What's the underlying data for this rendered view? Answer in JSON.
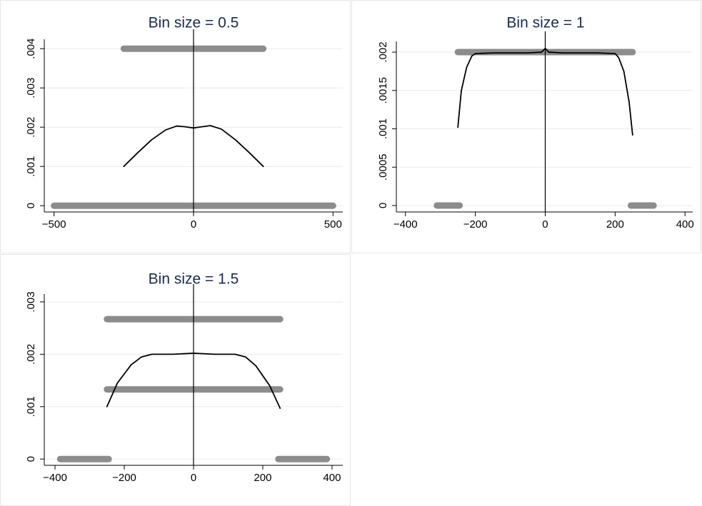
{
  "chart_data": [
    {
      "type": "line",
      "title": "Bin size = 0.5",
      "xlim": [
        -535,
        535
      ],
      "ylim": [
        -0.00016,
        0.00424
      ],
      "xticks": [
        {
          "value": -500,
          "label": "−500"
        },
        0,
        500
      ],
      "yticks": [
        0,
        {
          "value": 0.001,
          "label": ".001"
        },
        {
          "value": 0.002,
          "label": ".002"
        },
        {
          "value": 0.003,
          "label": ".003"
        },
        {
          "value": 0.004,
          "label": ".004"
        }
      ],
      "grid": true,
      "xline": 0,
      "series": [
        {
          "color": "#8c8c8c",
          "x": [
            -250,
            250,
            null,
            -500,
            500
          ],
          "values": [
            0.004,
            0.004,
            null,
            0,
            0
          ]
        },
        {
          "color": "#000000",
          "x": [
            -250,
            -200,
            -150,
            -100,
            -60,
            -30,
            0,
            30,
            60,
            100,
            150,
            200,
            250
          ],
          "values": [
            0.001,
            0.00135,
            0.00168,
            0.00193,
            0.00203,
            0.00201,
            0.00198,
            0.00201,
            0.00204,
            0.00195,
            0.00168,
            0.00135,
            0.001
          ]
        }
      ]
    },
    {
      "type": "line",
      "title": "Bin size = 1",
      "xlim": [
        -426,
        422
      ],
      "ylim": [
        -8.4e-05,
        0.00214
      ],
      "xticks": [
        {
          "value": -400,
          "label": "−400"
        },
        {
          "value": -200,
          "label": "−200"
        },
        0,
        200,
        400
      ],
      "yticks": [
        0,
        {
          "value": 0.0005,
          "label": ".0005"
        },
        {
          "value": 0.001,
          "label": ".001"
        },
        {
          "value": 0.0015,
          "label": ".0015"
        },
        {
          "value": 0.002,
          "label": ".002"
        }
      ],
      "grid": true,
      "xline": 0,
      "series": [
        {
          "color": "#8c8c8c",
          "x": [
            -250,
            250,
            null,
            -310,
            -245,
            null,
            245,
            310
          ],
          "values": [
            0.002,
            0.002,
            null,
            0,
            0,
            null,
            0,
            0
          ]
        },
        {
          "color": "#000000",
          "x": [
            -250,
            -240,
            -225,
            -210,
            -200,
            -150,
            -50,
            -10,
            0,
            10,
            50,
            150,
            200,
            210,
            225,
            240,
            250
          ],
          "values": [
            0.00102,
            0.0015,
            0.0018,
            0.00195,
            0.00198,
            0.00199,
            0.00199,
            0.002,
            0.00205,
            0.002,
            0.00199,
            0.00199,
            0.00198,
            0.00193,
            0.00175,
            0.00135,
            0.00092
          ]
        }
      ]
    },
    {
      "type": "line",
      "title": "Bin size = 1.5",
      "xlim": [
        -431,
        431
      ],
      "ylim": [
        -0.00012,
        0.00315
      ],
      "xticks": [
        {
          "value": -400,
          "label": "−400"
        },
        {
          "value": -200,
          "label": "−200"
        },
        0,
        200,
        400
      ],
      "yticks": [
        0,
        {
          "value": 0.001,
          "label": ".001"
        },
        {
          "value": 0.002,
          "label": ".002"
        },
        {
          "value": 0.003,
          "label": ".003"
        }
      ],
      "grid": true,
      "xline": 0,
      "series": [
        {
          "color": "#8c8c8c",
          "x": [
            -250,
            250,
            null,
            -250,
            250,
            null,
            -385,
            -245,
            null,
            245,
            385
          ],
          "values": [
            0.00267,
            0.00267,
            null,
            0.00133,
            0.00133,
            null,
            0,
            0,
            null,
            0,
            0
          ]
        },
        {
          "color": "#000000",
          "x": [
            -250,
            -220,
            -180,
            -150,
            -120,
            -60,
            0,
            60,
            120,
            150,
            180,
            220,
            250
          ],
          "values": [
            0.001,
            0.00145,
            0.0018,
            0.00195,
            0.002,
            0.002,
            0.00202,
            0.002,
            0.002,
            0.00195,
            0.00178,
            0.0014,
            0.00097
          ]
        }
      ]
    }
  ]
}
